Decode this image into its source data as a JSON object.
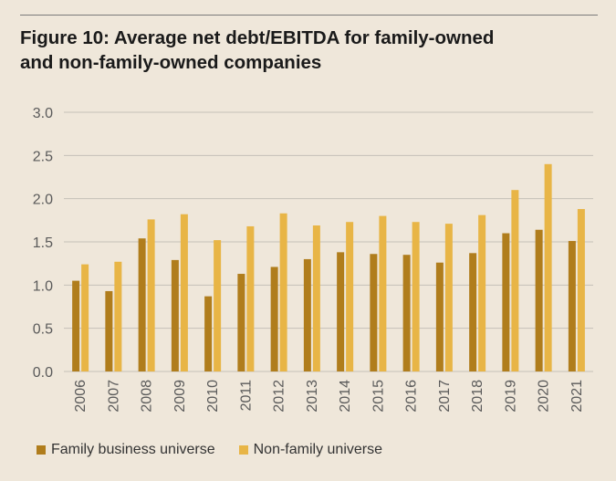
{
  "title_line1": "Figure 10: Average net debt/EBITDA for family-owned",
  "title_line2": "and non-family-owned companies",
  "colors": {
    "background": "#efe7da",
    "family": "#b07d1c",
    "non_family": "#e8b546",
    "gridline": "#c4c0b8",
    "axis_text": "#5a5a5a"
  },
  "chart_data": {
    "type": "bar",
    "categories": [
      "2006",
      "2007",
      "2008",
      "2009",
      "2010",
      "2011",
      "2012",
      "2013",
      "2014",
      "2015",
      "2016",
      "2017",
      "2018",
      "2019",
      "2020",
      "2021"
    ],
    "series": [
      {
        "name": "Family business universe",
        "values": [
          1.05,
          0.93,
          1.54,
          1.29,
          0.87,
          1.13,
          1.21,
          1.3,
          1.38,
          1.36,
          1.35,
          1.26,
          1.37,
          1.6,
          1.64,
          1.51
        ]
      },
      {
        "name": "Non-family universe",
        "values": [
          1.24,
          1.27,
          1.76,
          1.82,
          1.52,
          1.68,
          1.83,
          1.69,
          1.73,
          1.8,
          1.73,
          1.71,
          1.81,
          2.1,
          2.4,
          1.88
        ]
      }
    ],
    "yticks": [
      0.0,
      0.5,
      1.0,
      1.5,
      2.0,
      2.5,
      3.0
    ],
    "ytick_labels": [
      "0.0",
      "0.5",
      "1.0",
      "1.5",
      "2.0",
      "2.5",
      "3.0"
    ],
    "ylim": [
      0,
      3.0
    ],
    "xlabel": "",
    "ylabel": "",
    "grid": true,
    "legend_position": "bottom-left"
  }
}
